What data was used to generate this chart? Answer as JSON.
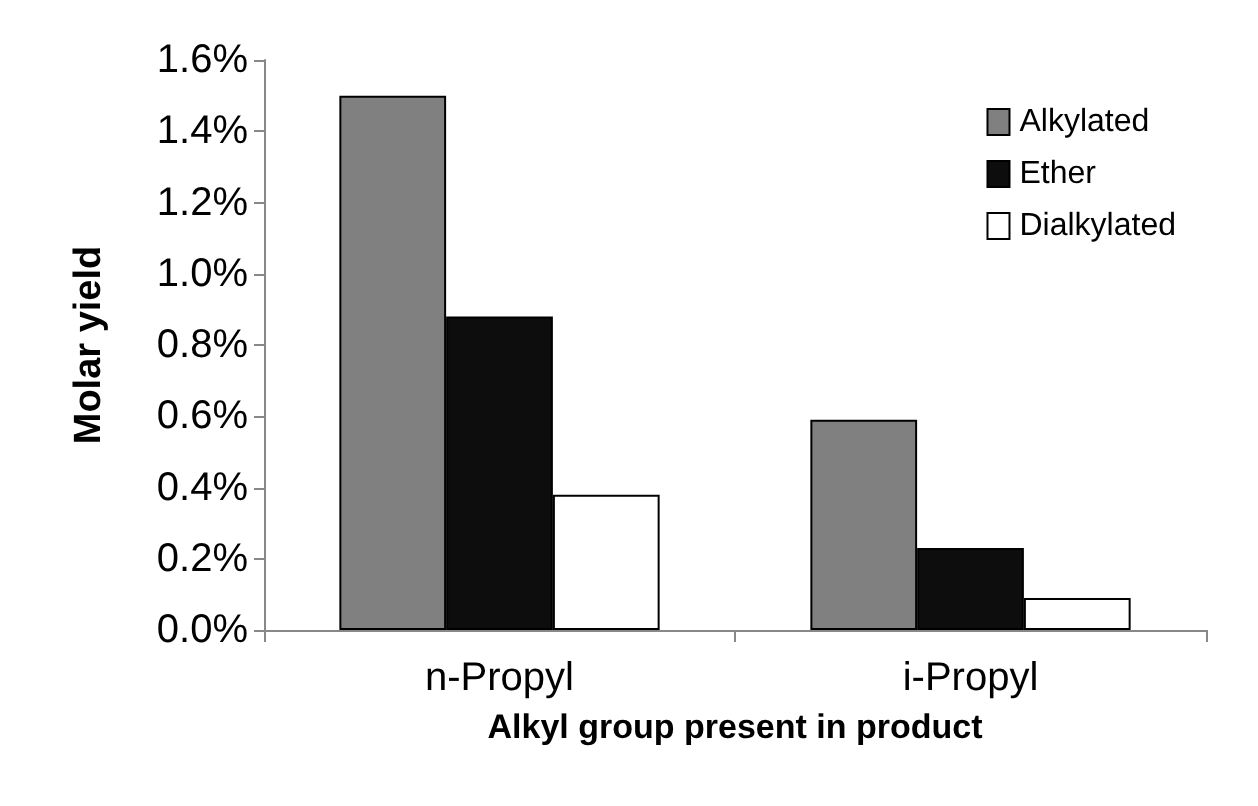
{
  "chart_data": {
    "type": "bar",
    "xlabel": "Alkyl group present in product",
    "ylabel": "Molar yield",
    "categories": [
      "n-Propyl",
      "i-Propyl"
    ],
    "series": [
      {
        "name": "Alkylated",
        "color": "#808080",
        "values": [
          1.5,
          0.59
        ]
      },
      {
        "name": "Ether",
        "color": "#0d0d0d",
        "values": [
          0.88,
          0.23
        ]
      },
      {
        "name": "Dialkylated",
        "color": "#ffffff",
        "values": [
          0.38,
          0.09
        ]
      }
    ],
    "ylim": [
      0,
      1.6
    ],
    "yticks": [
      {
        "value": 0,
        "label": "0.0%"
      },
      {
        "value": 0.2,
        "label": "0.2%"
      },
      {
        "value": 0.4,
        "label": "0.4%"
      },
      {
        "value": 0.6,
        "label": "0.6%"
      },
      {
        "value": 0.8,
        "label": "0.8%"
      },
      {
        "value": 1.0,
        "label": "1.0%"
      },
      {
        "value": 1.2,
        "label": "1.2%"
      },
      {
        "value": 1.4,
        "label": "1.4%"
      },
      {
        "value": 1.6,
        "label": "1.6%"
      }
    ],
    "grid": false,
    "legend": "top right"
  }
}
